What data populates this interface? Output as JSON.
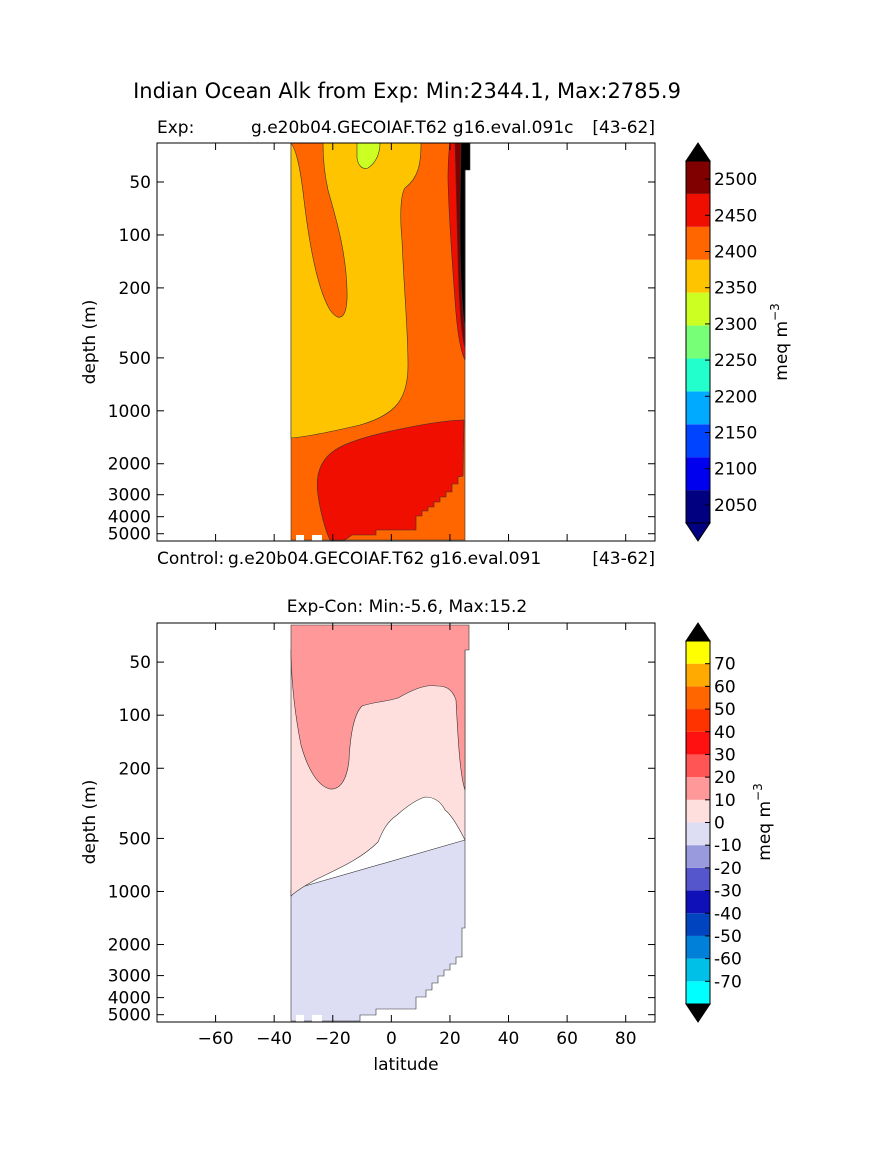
{
  "figure": {
    "suptitle": "Indian Ocean Alk from Exp: Min:2344.1, Max:2785.9"
  },
  "chart_data": [
    {
      "type": "contourf",
      "panel": "exp",
      "title_left": "Exp:",
      "title_center": "g.e20b04.GECOIAF.T62 g16.eval.091c",
      "title_right": "[43-62]",
      "ylabel": "depth (m)",
      "xlabel": "",
      "xlim": [
        -80,
        90
      ],
      "ylim": [
        5500,
        30
      ],
      "yscale": "log",
      "yticks": [
        50,
        100,
        200,
        500,
        1000,
        2000,
        3000,
        4000,
        5000
      ],
      "xticks": [
        -60,
        -40,
        -20,
        0,
        20,
        40,
        60,
        80
      ],
      "colorbar": {
        "label": "meq m",
        "label_exponent": "−3",
        "levels": [
          2025,
          2050,
          2075,
          2100,
          2125,
          2150,
          2175,
          2200,
          2225,
          2250,
          2275,
          2300,
          2325,
          2350,
          2375,
          2400,
          2425,
          2450,
          2475,
          2500,
          2525
        ],
        "band_colors": [
          "#000080",
          "#0000ee",
          "#0044ff",
          "#00aaff",
          "#22ffcc",
          "#77ff77",
          "#ccff22",
          "#ffc400",
          "#ff6600",
          "#f00e00",
          "#800000"
        ],
        "ticks": [
          2050,
          2100,
          2150,
          2200,
          2250,
          2300,
          2350,
          2400,
          2450,
          2500
        ],
        "under_color": "#000080",
        "over_color": "#000000"
      },
      "regions": [
        {
          "name": "orange-west-band",
          "value": 2425,
          "color": "#ff6600"
        },
        {
          "name": "yellow-interior",
          "value": 2375,
          "color": "#ffc400"
        },
        {
          "name": "green-patch",
          "value": 2325,
          "color": "#ccff22"
        },
        {
          "name": "red-deep-core",
          "value": 2475,
          "color": "#f00e00"
        },
        {
          "name": "red-east-strip",
          "value": 2475,
          "color": "#f00e00"
        },
        {
          "name": "maroon-east-strip",
          "value": 2510,
          "color": "#800000"
        },
        {
          "name": "black-east-edge",
          "value": 2600,
          "color": "#000000"
        }
      ]
    },
    {
      "type": "contourf",
      "panel": "diff",
      "title_top_left": "Control:",
      "title_top_center": "g.e20b04.GECOIAF.T62 g16.eval.091",
      "title_top_right": "[43-62]",
      "title": "Exp-Con: Min:-5.6, Max:15.2",
      "ylabel": "depth (m)",
      "xlabel": "latitude",
      "xlim": [
        -80,
        90
      ],
      "ylim": [
        5500,
        30
      ],
      "yscale": "log",
      "yticks": [
        50,
        100,
        200,
        500,
        1000,
        2000,
        3000,
        4000,
        5000
      ],
      "xticks": [
        -60,
        -40,
        -20,
        0,
        20,
        40,
        60,
        80
      ],
      "colorbar": {
        "label": "meq m",
        "label_exponent": "−3",
        "levels": [
          -80,
          -70,
          -60,
          -50,
          -40,
          -30,
          -20,
          -10,
          0,
          10,
          20,
          30,
          40,
          50,
          60,
          70,
          80
        ],
        "band_colors": [
          "#00ffff",
          "#00c0e8",
          "#0080d8",
          "#0044c0",
          "#1010b8",
          "#5555cc",
          "#9999dd",
          "#ddddf4",
          "#ffdede",
          "#ff9999",
          "#ff5555",
          "#ff1111",
          "#ff3300",
          "#ff6600",
          "#ffaa00",
          "#ffff00"
        ],
        "ticks": [
          -70,
          -60,
          -50,
          -40,
          -30,
          -20,
          -10,
          0,
          10,
          20,
          30,
          40,
          50,
          60,
          70
        ],
        "under_color": "#000000",
        "over_color": "#000000"
      },
      "regions": [
        {
          "name": "pink-upper",
          "value": 15,
          "color": "#ff9999"
        },
        {
          "name": "light-pink-middle",
          "value": 5,
          "color": "#ffdede"
        },
        {
          "name": "lavender-deep",
          "value": -5,
          "color": "#ddddf4"
        }
      ]
    }
  ]
}
